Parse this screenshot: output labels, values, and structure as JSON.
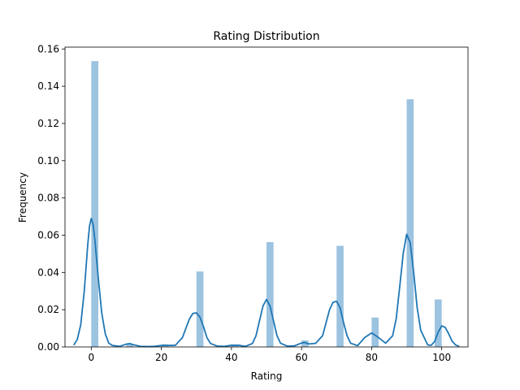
{
  "chart_data": {
    "type": "bar",
    "title": "Rating Distribution",
    "xlabel": "Rating",
    "ylabel": "Frequency",
    "xlim": [
      -7.5,
      107.5
    ],
    "ylim": [
      0,
      0.161
    ],
    "xticks": [
      0,
      20,
      40,
      60,
      80,
      100
    ],
    "yticks": [
      0.0,
      0.02,
      0.04,
      0.06,
      0.08,
      0.1,
      0.12,
      0.14,
      0.16
    ],
    "ytick_labels": [
      "0.00",
      "0.02",
      "0.04",
      "0.06",
      "0.08",
      "0.10",
      "0.12",
      "0.14",
      "0.16"
    ],
    "grid": false,
    "histogram": {
      "color": "#9cc3e0",
      "bin_width": 2.0,
      "bins": [
        {
          "x0": 0,
          "x1": 2,
          "value": 0.1535
        },
        {
          "x0": 10,
          "x1": 12,
          "value": 0.0015
        },
        {
          "x0": 20,
          "x1": 22,
          "value": 0.0013
        },
        {
          "x0": 30,
          "x1": 32,
          "value": 0.0405
        },
        {
          "x0": 40,
          "x1": 42,
          "value": 0.001
        },
        {
          "x0": 50,
          "x1": 52,
          "value": 0.0563
        },
        {
          "x0": 60,
          "x1": 62,
          "value": 0.0035
        },
        {
          "x0": 70,
          "x1": 72,
          "value": 0.0543
        },
        {
          "x0": 80,
          "x1": 82,
          "value": 0.0158
        },
        {
          "x0": 90,
          "x1": 92,
          "value": 0.133
        },
        {
          "x0": 98,
          "x1": 100,
          "value": 0.0255
        }
      ]
    },
    "kde": {
      "color": "#1f77b4",
      "x": [
        -5,
        -4,
        -3,
        -2,
        -1,
        -0.5,
        0,
        0.5,
        1,
        2,
        3,
        4,
        5,
        6,
        8,
        10,
        11,
        12,
        14,
        16,
        18,
        20,
        21,
        22,
        24,
        26,
        27,
        28,
        29,
        30,
        31,
        32,
        33,
        34,
        36,
        38,
        40,
        42,
        44,
        46,
        47,
        48,
        49,
        50,
        51,
        52,
        53,
        54,
        56,
        58,
        60,
        61,
        62,
        64,
        66,
        67,
        68,
        69,
        70,
        71,
        72,
        73,
        74,
        76,
        78,
        80,
        82,
        84,
        86,
        87,
        88,
        89,
        90,
        91,
        92,
        93,
        94,
        96,
        97,
        98,
        99,
        100,
        101,
        102,
        103,
        104,
        105
      ],
      "y": [
        0.001,
        0.004,
        0.012,
        0.03,
        0.055,
        0.065,
        0.069,
        0.066,
        0.058,
        0.037,
        0.018,
        0.007,
        0.002,
        0.0008,
        0.0003,
        0.0015,
        0.0018,
        0.0012,
        0.0003,
        0.0002,
        0.0003,
        0.0008,
        0.001,
        0.0008,
        0.0009,
        0.005,
        0.01,
        0.015,
        0.018,
        0.0183,
        0.016,
        0.011,
        0.005,
        0.0019,
        0.0004,
        0.0003,
        0.0009,
        0.0009,
        0.0003,
        0.0019,
        0.006,
        0.014,
        0.022,
        0.0255,
        0.022,
        0.014,
        0.006,
        0.002,
        0.0004,
        0.0006,
        0.0021,
        0.0024,
        0.0016,
        0.0019,
        0.006,
        0.013,
        0.02,
        0.024,
        0.0245,
        0.021,
        0.013,
        0.006,
        0.002,
        0.0007,
        0.005,
        0.0075,
        0.005,
        0.002,
        0.006,
        0.015,
        0.032,
        0.05,
        0.0605,
        0.056,
        0.04,
        0.021,
        0.009,
        0.0011,
        0.0009,
        0.003,
        0.008,
        0.0113,
        0.0105,
        0.007,
        0.003,
        0.001,
        0.0003
      ]
    }
  }
}
